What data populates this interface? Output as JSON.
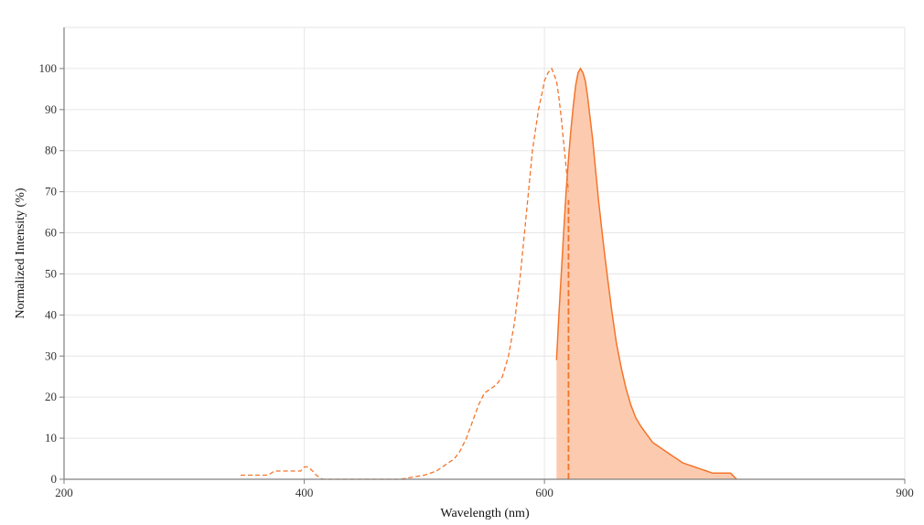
{
  "chart_data": {
    "type": "area",
    "xlabel": "Wavelength (nm)",
    "ylabel": "Normalized Intensity (%)",
    "xlim": [
      200,
      900
    ],
    "ylim": [
      0,
      110
    ],
    "x_ticks": [
      200,
      400,
      600,
      900
    ],
    "y_ticks": [
      0,
      10,
      20,
      30,
      40,
      50,
      60,
      70,
      80,
      90,
      100
    ],
    "grid": true,
    "colors": {
      "line": "#f4742b",
      "fill": "#fccbaf",
      "grid": "#e6e6e6",
      "axis": "#7f7f7f"
    },
    "excitation_marker_nm": 620,
    "series": [
      {
        "style": "dashed-line",
        "x": [
          347,
          360,
          370,
          375,
          380,
          390,
          397,
          400,
          403,
          407,
          410,
          415,
          420,
          430,
          440,
          460,
          480,
          500,
          510,
          515,
          520,
          525,
          530,
          535,
          540,
          545,
          550,
          555,
          560,
          565,
          570,
          575,
          580,
          585,
          590,
          595,
          598,
          600,
          603,
          606,
          610,
          612,
          614,
          616,
          618,
          620
        ],
        "y": [
          1,
          1,
          1,
          2,
          2,
          2,
          2,
          3,
          3,
          2,
          1,
          0,
          0,
          0,
          0,
          0,
          0,
          1,
          2,
          3,
          4,
          5,
          7,
          10,
          14,
          18,
          21,
          22,
          23,
          25,
          30,
          38,
          50,
          65,
          80,
          90,
          94,
          97,
          99,
          100,
          97,
          93,
          88,
          82,
          76,
          70
        ]
      },
      {
        "style": "filled-area",
        "x": [
          610,
          612,
          614,
          616,
          618,
          620,
          622,
          624,
          626,
          628,
          630,
          632,
          634,
          636,
          638,
          640,
          642,
          645,
          648,
          650,
          653,
          656,
          660,
          664,
          668,
          672,
          676,
          680,
          685,
          690,
          695,
          700,
          705,
          710,
          715,
          720,
          725,
          730,
          735,
          740,
          745,
          750,
          755,
          760
        ],
        "y": [
          29,
          40,
          50,
          60,
          70,
          78,
          85,
          91,
          96,
          99,
          100,
          99,
          97,
          93,
          88,
          83,
          77,
          68,
          60,
          55,
          48,
          41,
          33,
          27,
          22,
          18,
          15,
          13,
          11,
          9,
          8,
          7,
          6,
          5,
          4,
          3.5,
          3,
          2.5,
          2,
          1.5,
          1.5,
          1.5,
          1.5,
          0
        ]
      }
    ]
  }
}
